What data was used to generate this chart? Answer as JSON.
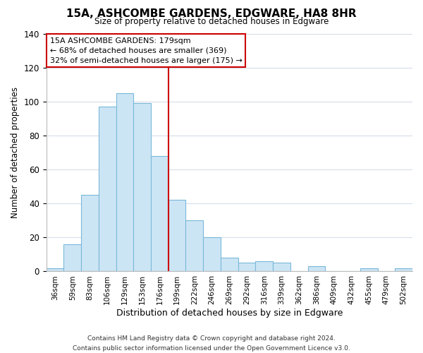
{
  "title": "15A, ASHCOMBE GARDENS, EDGWARE, HA8 8HR",
  "subtitle": "Size of property relative to detached houses in Edgware",
  "xlabel": "Distribution of detached houses by size in Edgware",
  "ylabel": "Number of detached properties",
  "bar_labels": [
    "36sqm",
    "59sqm",
    "83sqm",
    "106sqm",
    "129sqm",
    "153sqm",
    "176sqm",
    "199sqm",
    "222sqm",
    "246sqm",
    "269sqm",
    "292sqm",
    "316sqm",
    "339sqm",
    "362sqm",
    "386sqm",
    "409sqm",
    "432sqm",
    "455sqm",
    "479sqm",
    "502sqm"
  ],
  "bar_values": [
    2,
    16,
    45,
    97,
    105,
    99,
    68,
    42,
    30,
    20,
    8,
    5,
    6,
    5,
    0,
    3,
    0,
    0,
    2,
    0,
    2
  ],
  "bar_color": "#cce5f5",
  "bar_edge_color": "#7ab8d9",
  "vline_x_idx": 6,
  "vline_color": "#cc0000",
  "annotation_line1": "15A ASHCOMBE GARDENS: 179sqm",
  "annotation_line2": "← 68% of detached houses are smaller (369)",
  "annotation_line3": "32% of semi-detached houses are larger (175) →",
  "annotation_box_edge": "#cc0000",
  "ylim": [
    0,
    140
  ],
  "yticks": [
    0,
    20,
    40,
    60,
    80,
    100,
    120,
    140
  ],
  "footer_line1": "Contains HM Land Registry data © Crown copyright and database right 2024.",
  "footer_line2": "Contains public sector information licensed under the Open Government Licence v3.0.",
  "background_color": "#ffffff",
  "grid_color": "#d5dde8"
}
